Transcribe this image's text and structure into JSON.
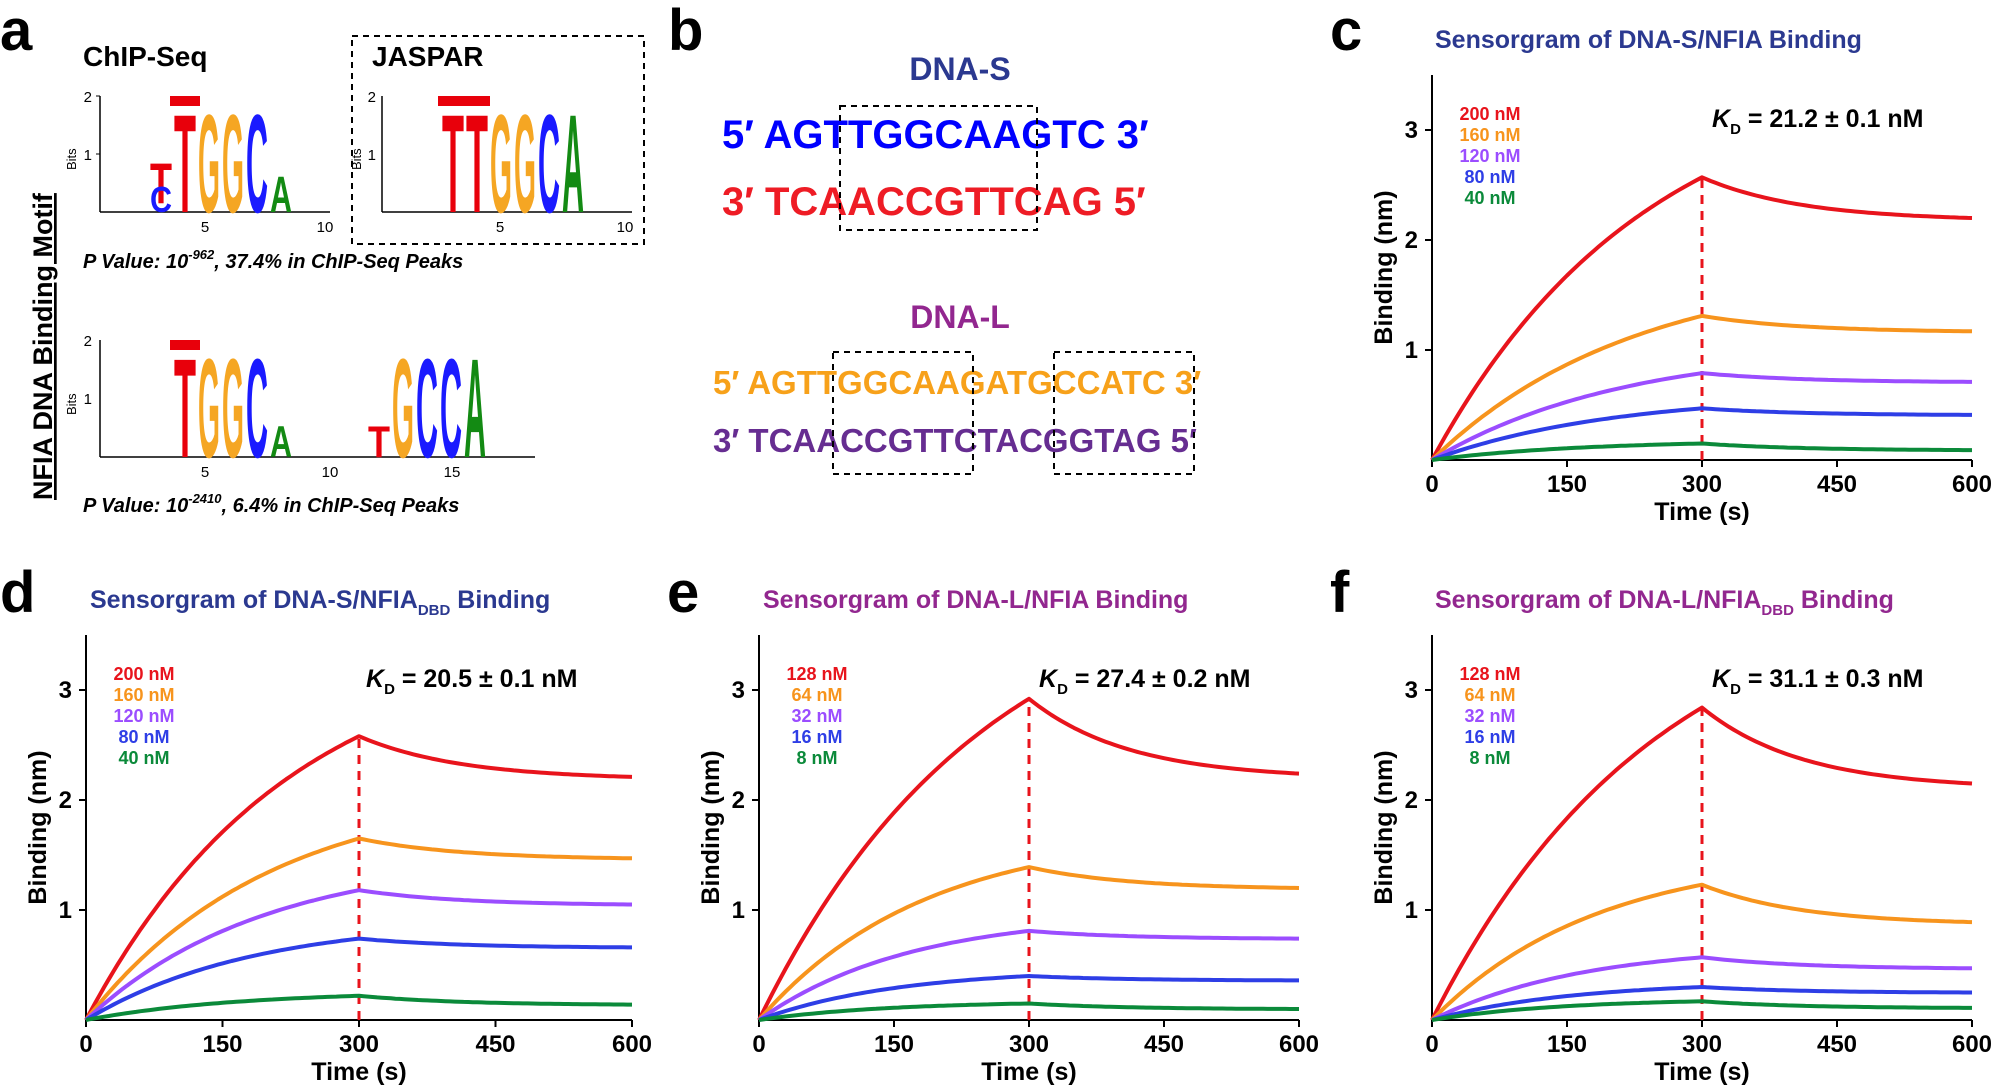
{
  "panels": {
    "a": {
      "letter": "a",
      "side_label": "NFIA DNA Binding Motif",
      "logo1_title": "ChIP-Seq",
      "logo2_title": "JASPAR",
      "bits_label": "Bits",
      "ticks_y": [
        "2",
        "1"
      ],
      "ticks_x_short": [
        "5",
        "10"
      ],
      "ticks_x_long": [
        "5",
        "10",
        "15"
      ],
      "pvalue1": {
        "prefix": "P Value: 10",
        "exp": "-962",
        "suffix": ", 37.4% in ChIP-Seq Peaks"
      },
      "pvalue2": {
        "prefix": "P Value: 10",
        "exp": "-2410",
        "suffix": ", 6.4% in ChIP-Seq Peaks"
      },
      "letters": {
        "T": "T",
        "G": "G",
        "C": "C",
        "A": "A"
      },
      "colors": {
        "T": "#e8000b",
        "G": "#f5a623",
        "C": "#1a1aff",
        "A": "#138a13"
      }
    },
    "b": {
      "letter": "b",
      "dna_s_title": "DNA-S",
      "dna_s_top": "5′ AGTTGGCAAGTC 3′",
      "dna_s_bottom": "3′ TCAACCGTTCAG 5′",
      "dna_l_title": "DNA-L",
      "dna_l_top": "5′ AGTTGGCAAGATGCCATC 3′",
      "dna_l_bottom": "3′ TCAACCGTTCTACGGTAG 5′",
      "colors": {
        "s_title": "#2b3990",
        "s_top": "#0000ff",
        "s_bottom": "#ee1c25",
        "l_title": "#92278f",
        "l_top": "#f7a11a",
        "l_bottom": "#662d91"
      }
    }
  },
  "chart_data": [
    {
      "id": "c",
      "letter": "c",
      "type": "line",
      "title": "Sensorgram of DNA-S/NFIA Binding",
      "title_sub": "",
      "title_tail": "",
      "title_color": "#2b3990",
      "kd": {
        "prefix": "K",
        "sub": "D",
        "value": " = 21.2 ± 0.1 nM"
      },
      "xlabel": "Time (s)",
      "ylabel": "Binding (nm)",
      "xlim": [
        0,
        600
      ],
      "ylim": [
        0,
        3.5
      ],
      "xticks": [
        0,
        150,
        300,
        450,
        600
      ],
      "yticks": [
        1,
        2,
        3
      ],
      "switch_time": 300,
      "series": [
        {
          "name": "200 nM",
          "color": "#e8141c",
          "peak": 2.57,
          "end": 2.2,
          "k": 0.0042
        },
        {
          "name": "160 nM",
          "color": "#f7941d",
          "peak": 1.31,
          "end": 1.17,
          "k": 0.0045
        },
        {
          "name": "120 nM",
          "color": "#9b4dff",
          "peak": 0.79,
          "end": 0.71,
          "k": 0.0047
        },
        {
          "name": "80 nM",
          "color": "#2e3ee6",
          "peak": 0.47,
          "end": 0.41,
          "k": 0.005
        },
        {
          "name": "40 nM",
          "color": "#0b8a3a",
          "peak": 0.15,
          "end": 0.09,
          "k": 0.006
        }
      ]
    },
    {
      "id": "d",
      "letter": "d",
      "type": "line",
      "title": "Sensorgram of DNA-S/NFIA",
      "title_sub": "DBD",
      "title_tail": " Binding",
      "title_color": "#2b3990",
      "kd": {
        "prefix": "K",
        "sub": "D",
        "value": " = 20.5 ± 0.1 nM"
      },
      "xlabel": "Time (s)",
      "ylabel": "Binding (nm)",
      "xlim": [
        0,
        600
      ],
      "ylim": [
        0,
        3.5
      ],
      "xticks": [
        0,
        150,
        300,
        450,
        600
      ],
      "yticks": [
        1,
        2,
        3
      ],
      "switch_time": 300,
      "series": [
        {
          "name": "200 nM",
          "color": "#e8141c",
          "peak": 2.58,
          "end": 2.21,
          "k": 0.0045
        },
        {
          "name": "160 nM",
          "color": "#f7941d",
          "peak": 1.65,
          "end": 1.47,
          "k": 0.005
        },
        {
          "name": "120 nM",
          "color": "#9b4dff",
          "peak": 1.18,
          "end": 1.05,
          "k": 0.0052
        },
        {
          "name": "80 nM",
          "color": "#2e3ee6",
          "peak": 0.74,
          "end": 0.66,
          "k": 0.0055
        },
        {
          "name": "40 nM",
          "color": "#0b8a3a",
          "peak": 0.22,
          "end": 0.14,
          "k": 0.006
        }
      ]
    },
    {
      "id": "e",
      "letter": "e",
      "type": "line",
      "title": "Sensorgram of DNA-L/NFIA Binding",
      "title_sub": "",
      "title_tail": "",
      "title_color": "#92278f",
      "kd": {
        "prefix": "K",
        "sub": "D",
        "value": " = 27.4 ± 0.2 nM"
      },
      "xlabel": "Time (s)",
      "ylabel": "Binding (nm)",
      "xlim": [
        0,
        600
      ],
      "ylim": [
        0,
        3.5
      ],
      "xticks": [
        0,
        150,
        300,
        450,
        600
      ],
      "yticks": [
        1,
        2,
        3
      ],
      "switch_time": 300,
      "series": [
        {
          "name": "128 nM",
          "color": "#e8141c",
          "peak": 2.92,
          "end": 2.24,
          "k": 0.004
        },
        {
          "name": "64 nM",
          "color": "#f7941d",
          "peak": 1.39,
          "end": 1.2,
          "k": 0.0055
        },
        {
          "name": "32 nM",
          "color": "#9b4dff",
          "peak": 0.81,
          "end": 0.74,
          "k": 0.006
        },
        {
          "name": "16 nM",
          "color": "#2e3ee6",
          "peak": 0.4,
          "end": 0.36,
          "k": 0.0065
        },
        {
          "name": "8 nM",
          "color": "#0b8a3a",
          "peak": 0.15,
          "end": 0.1,
          "k": 0.007
        }
      ]
    },
    {
      "id": "f",
      "letter": "f",
      "type": "line",
      "title": "Sensorgram of DNA-L/NFIA",
      "title_sub": "DBD",
      "title_tail": " Binding",
      "title_color": "#92278f",
      "kd": {
        "prefix": "K",
        "sub": "D",
        "value": " = 31.1 ± 0.3 nM"
      },
      "xlabel": "Time (s)",
      "ylabel": "Binding (nm)",
      "xlim": [
        0,
        600
      ],
      "ylim": [
        0,
        3.5
      ],
      "xticks": [
        0,
        150,
        300,
        450,
        600
      ],
      "yticks": [
        1,
        2,
        3
      ],
      "switch_time": 300,
      "series": [
        {
          "name": "128 nM",
          "color": "#e8141c",
          "peak": 2.84,
          "end": 2.15,
          "k": 0.004
        },
        {
          "name": "64 nM",
          "color": "#f7941d",
          "peak": 1.23,
          "end": 0.89,
          "k": 0.0055
        },
        {
          "name": "32 nM",
          "color": "#9b4dff",
          "peak": 0.57,
          "end": 0.47,
          "k": 0.006
        },
        {
          "name": "16 nM",
          "color": "#2e3ee6",
          "peak": 0.3,
          "end": 0.25,
          "k": 0.0065
        },
        {
          "name": "8 nM",
          "color": "#0b8a3a",
          "peak": 0.17,
          "end": 0.11,
          "k": 0.007
        }
      ]
    }
  ]
}
